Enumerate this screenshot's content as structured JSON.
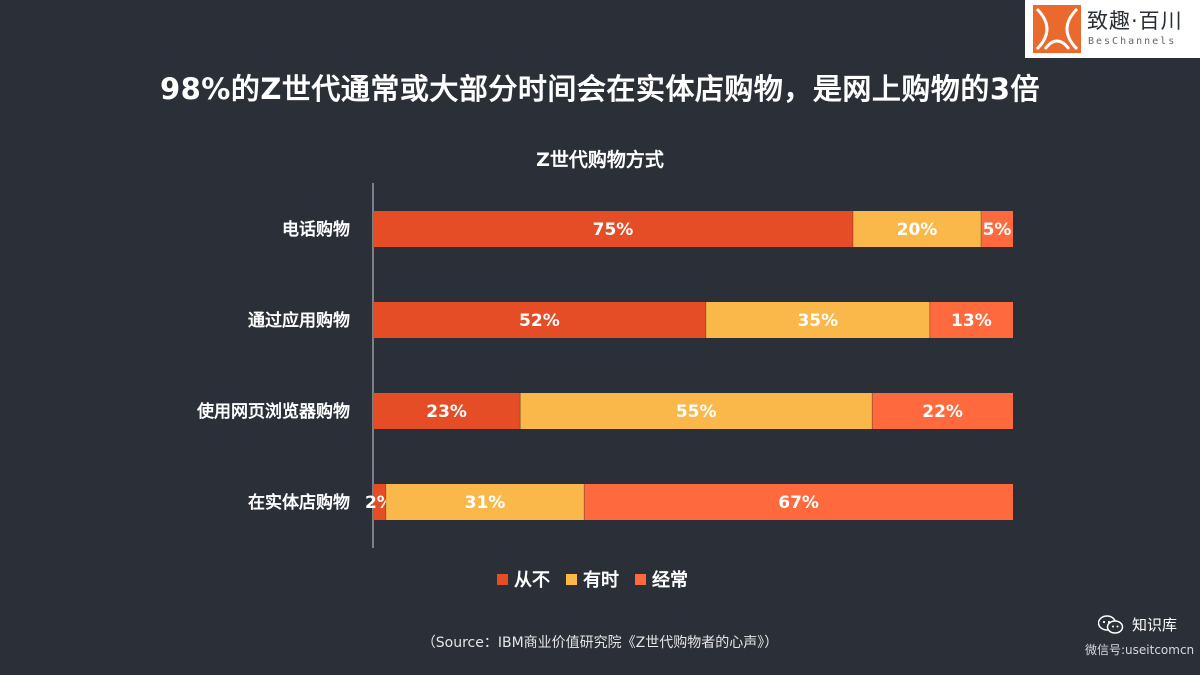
{
  "headline": "98%的Z世代通常或大部分时间会在实体店购物，是网上购物的3倍",
  "logo": {
    "cn": "致趣·百川",
    "en": "BesChannels"
  },
  "source": "（Source：IBM商业价值研究院《Z世代购物者的心声》）",
  "watermark": {
    "name": "知识库",
    "account": "微信号:useitcomcn",
    "icon": "wechat-icon"
  },
  "colors": {
    "background": "#2b2f37",
    "never": "#e44d26",
    "sometimes": "#fbb84a",
    "often": "#fe6a3d",
    "axis": "#cfcfcf"
  },
  "chart_data": {
    "type": "bar",
    "orientation": "horizontal",
    "stacked": true,
    "percent": true,
    "title": "Z世代购物方式",
    "xlim": [
      0,
      100
    ],
    "legend_position": "bottom",
    "grid": false,
    "categories": [
      "电话购物",
      "通过应用购物",
      "使用网页浏览器购物",
      "在实体店购物"
    ],
    "series": [
      {
        "name": "从不",
        "values": [
          75,
          52,
          23,
          2
        ],
        "color": "#e44d26"
      },
      {
        "name": "有时",
        "values": [
          20,
          35,
          55,
          31
        ],
        "color": "#fbb84a"
      },
      {
        "name": "经常",
        "values": [
          5,
          13,
          22,
          67
        ],
        "color": "#fe6a3d"
      }
    ]
  }
}
